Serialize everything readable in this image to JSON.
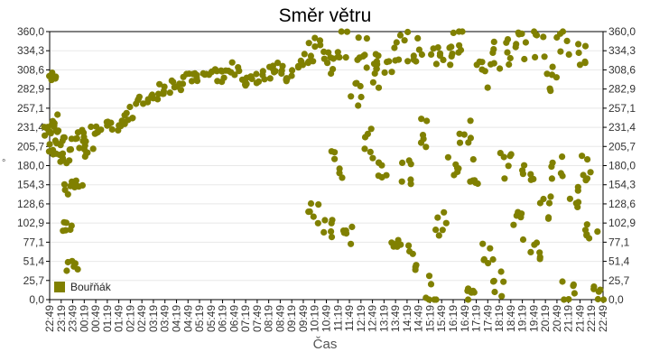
{
  "chart_data": {
    "type": "scatter",
    "title": "Směr větru",
    "xlabel": "Čas",
    "ylabel": "°",
    "ylim": [
      0,
      360
    ],
    "grid": true,
    "legend_position": "bottom-left inside",
    "y_ticks": [
      "0,0",
      "25,7",
      "51,4",
      "77,1",
      "102,9",
      "128,6",
      "154,3",
      "180,0",
      "205,7",
      "231,4",
      "257,1",
      "282,9",
      "308,6",
      "334,3",
      "360,0"
    ],
    "x_ticks": [
      "22:49",
      "23:19",
      "23:49",
      "00:19",
      "00:49",
      "01:19",
      "01:49",
      "02:19",
      "02:49",
      "03:19",
      "03:49",
      "04:19",
      "04:49",
      "05:19",
      "05:49",
      "06:19",
      "06:49",
      "07:19",
      "07:49",
      "08:19",
      "08:49",
      "09:19",
      "09:49",
      "10:19",
      "10:49",
      "11:19",
      "11:49",
      "12:19",
      "12:49",
      "13:19",
      "13:49",
      "14:19",
      "14:49",
      "15:19",
      "15:49",
      "16:19",
      "16:49",
      "17:19",
      "17:49",
      "18:19",
      "18:49",
      "19:19",
      "19:49",
      "20:19",
      "20:49",
      "21:19",
      "21:49",
      "22:19",
      "22:49"
    ],
    "series": [
      {
        "name": "Bouřňák",
        "color": "#808000",
        "description": "Wind direction readings. ~22:49-00:19 scattered around 180-245° with dip to ~150-95°; steady rise from ~215° at 00:49 to ~300° by 06:49; 07:19-09:49 around 285-320°; after ~09:49 widely scattered 0-355° with dense cluster 280-350°.",
        "x": [
          "22:49",
          "22:55",
          "23:00",
          "23:10",
          "23:19",
          "23:25",
          "23:35",
          "23:40",
          "23:49",
          "23:55",
          "00:05",
          "00:19",
          "00:35",
          "00:49",
          "01:19",
          "01:49",
          "02:19",
          "02:49",
          "03:19",
          "03:49",
          "04:19",
          "04:49",
          "05:19",
          "05:49",
          "06:19",
          "06:49",
          "07:19",
          "07:49",
          "08:19",
          "08:49",
          "09:19",
          "09:49",
          "10:05",
          "10:19",
          "10:35",
          "10:49",
          "11:05",
          "11:19",
          "11:35",
          "11:49",
          "12:05",
          "12:19",
          "12:35",
          "12:49",
          "13:05",
          "13:19",
          "13:35",
          "13:49",
          "14:05",
          "14:19",
          "14:35",
          "14:49",
          "15:05",
          "15:19",
          "15:35",
          "15:49",
          "16:05",
          "16:19",
          "16:35",
          "16:49",
          "17:05",
          "17:19",
          "17:35",
          "17:49",
          "18:05",
          "18:19",
          "18:35",
          "18:49",
          "19:05",
          "19:19",
          "19:35",
          "19:49",
          "20:05",
          "20:19",
          "20:35",
          "20:49",
          "21:05",
          "21:19",
          "21:35",
          "21:49",
          "22:05",
          "22:19",
          "22:35",
          "22:49"
        ],
        "values": [
          225,
          240,
          200,
          230,
          215,
          190,
          150,
          95,
          45,
          210,
          160,
          220,
          200,
          225,
          230,
          235,
          250,
          265,
          275,
          285,
          290,
          295,
          300,
          305,
          300,
          310,
          295,
          300,
          305,
          310,
          300,
          315,
          330,
          120,
          340,
          95,
          320,
          180,
          345,
          90,
          280,
          335,
          210,
          300,
          330,
          180,
          320,
          65,
          340,
          170,
          60,
          335,
          225,
          15,
          320,
          100,
          330,
          180,
          345,
          230,
          10,
          170,
          300,
          60,
          330,
          20,
          180,
          335,
          100,
          340,
          180,
          60,
          345,
          120,
          300,
          180,
          345,
          10,
          140,
          330,
          180,
          100,
          0,
          300
        ]
      }
    ]
  },
  "legend": {
    "label": "Bouřňák"
  },
  "axis": {
    "unit_symbol": "°"
  }
}
